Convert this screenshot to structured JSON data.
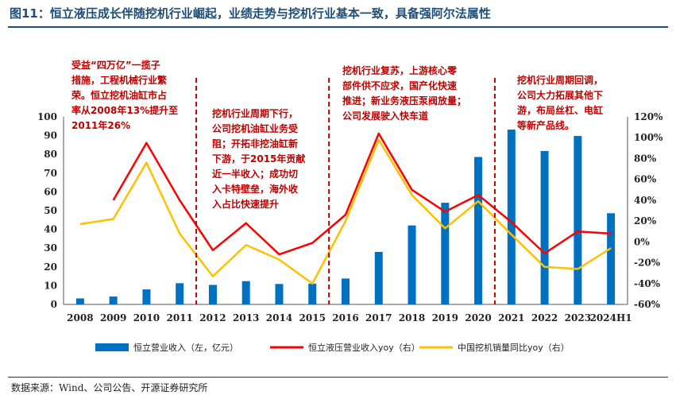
{
  "title": "图11：恒立液压成长伴随挖机行业崛起，业绩走势与挖机行业基本一致，具备强阿尔法属性",
  "source": "数据来源：Wind、公司公告、开源证券研究所",
  "colors": {
    "bar": "#0070c0",
    "red_line": "#ff0000",
    "yellow_line": "#ffc000",
    "divider": "#c00000",
    "annotation": "#c00000",
    "title": "#1f4e79"
  },
  "chart_data": {
    "type": "bar",
    "categories": [
      "2008",
      "2009",
      "2010",
      "2011",
      "2012",
      "2013",
      "2014",
      "2015",
      "2016",
      "2017",
      "2018",
      "2019",
      "2020",
      "2021",
      "2022",
      "2023",
      "2024H1"
    ],
    "left_axis": {
      "range": [
        0,
        100
      ],
      "ticks": [
        "0",
        "10",
        "20",
        "30",
        "40",
        "50",
        "60",
        "70",
        "80",
        "90",
        "100"
      ]
    },
    "right_axis": {
      "range": [
        -60,
        120
      ],
      "ticks": [
        "-60%",
        "-40%",
        "-20%",
        "0%",
        "20%",
        "40%",
        "60%",
        "80%",
        "100%",
        "120%"
      ]
    },
    "series": [
      {
        "name": "恒立营业收入（左，亿元）",
        "type": "bar",
        "axis": "left",
        "values": [
          3.2,
          4.2,
          8.0,
          11.3,
          10.4,
          12.4,
          10.9,
          11.1,
          13.8,
          28.0,
          42.1,
          54.2,
          78.6,
          93.2,
          81.8,
          89.8,
          48.6
        ]
      },
      {
        "name": "恒立液压营业收入yoy（右）",
        "type": "line",
        "axis": "right",
        "values": [
          null,
          40,
          95,
          40,
          -8,
          18,
          -12,
          -1,
          26,
          104,
          50,
          29,
          45,
          19,
          -11,
          10,
          8
        ]
      },
      {
        "name": "中国挖机销量同比yoy（右）",
        "type": "line",
        "axis": "right",
        "values": [
          17,
          22,
          76,
          8,
          -33,
          -3,
          -17,
          -40,
          20,
          98,
          45,
          13,
          39,
          7,
          -24,
          -26,
          -6
        ]
      }
    ],
    "dividers_after": [
      "2011",
      "2015",
      "2020"
    ],
    "annotations": [
      {
        "lines": [
          "受益“四万亿”一揽子",
          "措施，工程机械行业繁",
          "荣。恒立挖机油缸市占",
          "率从2008年13%提升至",
          "2011年26%"
        ]
      },
      {
        "lines": [
          "挖机行业周期下行，",
          "公司挖机油缸业务受",
          "阻；开拓非挖油缸新",
          "下游，于2015年贡献",
          "近一半收入；成功切",
          "入卡特壁垒，海外收",
          "入占比快速提升"
        ]
      },
      {
        "lines": [
          "挖机行业复苏，上游核心零",
          "部件供不应求，国产化快速",
          "推进；新业务液压泵阀放量；",
          "公司发展驶入快车道"
        ]
      },
      {
        "lines": [
          "挖机行业周期回调，",
          "公司大力拓展其他下",
          "游，布局丝杠、电缸",
          "等新产品线。"
        ]
      }
    ],
    "legend": [
      "恒立营业收入（左，亿元）",
      "恒立液压营业收入yoy（右）",
      "中国挖机销量同比yoy（右）"
    ],
    "legend_position": "bottom",
    "grid": false
  }
}
